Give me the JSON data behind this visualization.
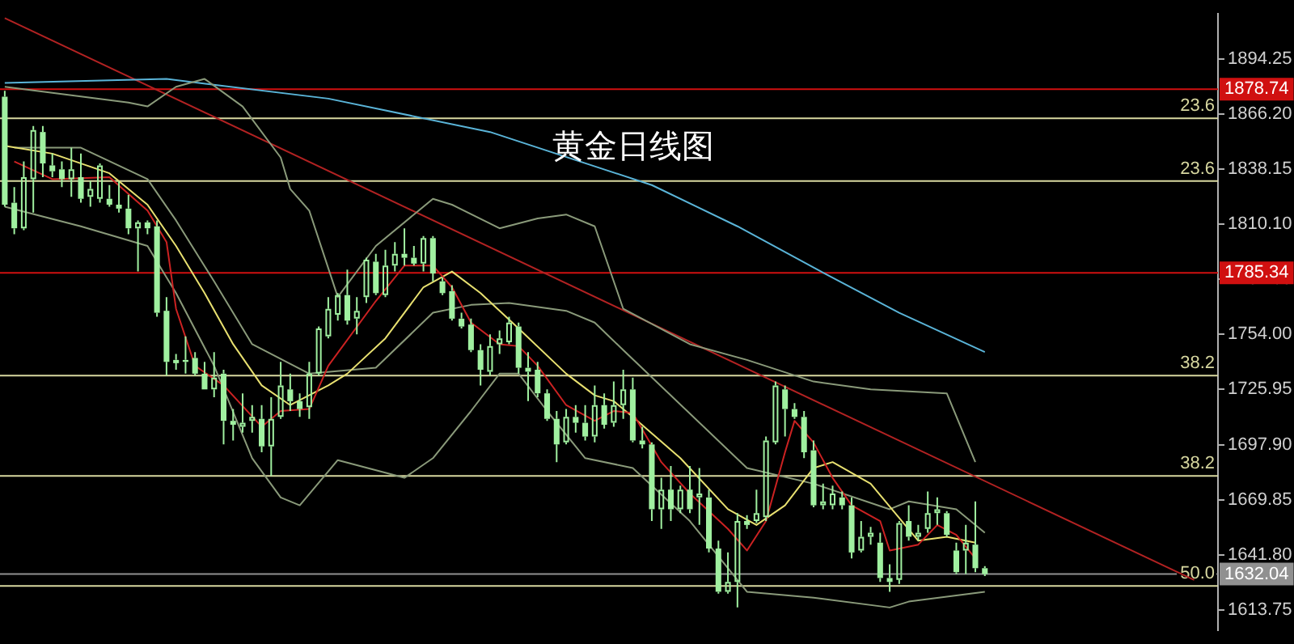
{
  "chart_data": {
    "type": "candlestick",
    "title": "黄金日线图",
    "color": "#a0f0a0",
    "tick_labels": "y",
    "categories": [
      null,
      null,
      null,
      null,
      null,
      null,
      null,
      null,
      null,
      null,
      null,
      null,
      null,
      null,
      null,
      null,
      null,
      null,
      null,
      null,
      null,
      null,
      null,
      null,
      null,
      null,
      null,
      null,
      null,
      null,
      null,
      null,
      null,
      null,
      null,
      null,
      null,
      null,
      null,
      null,
      null,
      null,
      null,
      null,
      null,
      null,
      null,
      null,
      null,
      null,
      null,
      null,
      null,
      null,
      null,
      null,
      null,
      null,
      null,
      null,
      null,
      null,
      null,
      null,
      null,
      null,
      null,
      null,
      null,
      null,
      null,
      null,
      null,
      null,
      null,
      null,
      null,
      null,
      null,
      null,
      null,
      null,
      null,
      null,
      null,
      null,
      null,
      null,
      null,
      null,
      null,
      null,
      null,
      null,
      null,
      null,
      null,
      null,
      null,
      null,
      null,
      null,
      null,
      null,
      null,
      null,
      null,
      null,
      null,
      null,
      null,
      null,
      null,
      null,
      null,
      null,
      null,
      null,
      null,
      null,
      null,
      null,
      null,
      null,
      null,
      null,
      null,
      null
    ],
    "ohlc": [
      [
        1875,
        1878,
        1819,
        1820
      ],
      [
        1821,
        1829,
        1805,
        1808
      ],
      [
        1808,
        1842,
        1807,
        1834
      ],
      [
        1833,
        1860,
        1816,
        1858
      ],
      [
        1857,
        1860,
        1834,
        1841
      ],
      [
        1840,
        1846,
        1834,
        1837
      ],
      [
        1838,
        1842,
        1829,
        1833
      ],
      [
        1833,
        1849,
        1824,
        1838
      ],
      [
        1834,
        1846,
        1821,
        1823
      ],
      [
        1824,
        1832,
        1819,
        1828
      ],
      [
        1823,
        1841,
        1821,
        1840
      ],
      [
        1823,
        1830,
        1819,
        1820
      ],
      [
        1820,
        1832,
        1816,
        1818
      ],
      [
        1818,
        1825,
        1805,
        1808
      ],
      [
        1808,
        1812,
        1786,
        1811
      ],
      [
        1811,
        1812,
        1805,
        1808
      ],
      [
        1809,
        1812,
        1763,
        1765
      ],
      [
        1766,
        1773,
        1733,
        1740
      ],
      [
        1740,
        1744,
        1736,
        1741
      ],
      [
        1741,
        1753,
        1734,
        1740
      ],
      [
        1742,
        1745,
        1733,
        1734
      ],
      [
        1734,
        1740,
        1726,
        1726
      ],
      [
        1726,
        1745,
        1722,
        1732
      ],
      [
        1734,
        1736,
        1698,
        1710
      ],
      [
        1710,
        1716,
        1700,
        1708
      ],
      [
        1707,
        1724,
        1704,
        1709
      ],
      [
        1710,
        1718,
        1704,
        1712
      ],
      [
        1711,
        1718,
        1694,
        1697
      ],
      [
        1697,
        1722,
        1682,
        1711
      ],
      [
        1712,
        1740,
        1711,
        1728
      ],
      [
        1726,
        1734,
        1715,
        1720
      ],
      [
        1720,
        1724,
        1712,
        1716
      ],
      [
        1717,
        1740,
        1711,
        1734
      ],
      [
        1734,
        1758,
        1733,
        1757
      ],
      [
        1753,
        1773,
        1752,
        1767
      ],
      [
        1764,
        1775,
        1761,
        1774
      ],
      [
        1774,
        1787,
        1759,
        1761
      ],
      [
        1762,
        1773,
        1754,
        1766
      ],
      [
        1773,
        1793,
        1770,
        1792
      ],
      [
        1791,
        1795,
        1774,
        1775
      ],
      [
        1774,
        1797,
        1773,
        1789
      ],
      [
        1789,
        1801,
        1786,
        1795
      ],
      [
        1795,
        1808,
        1789,
        1793
      ],
      [
        1793,
        1799,
        1789,
        1790
      ],
      [
        1790,
        1804,
        1786,
        1803
      ],
      [
        1803,
        1804,
        1781,
        1785
      ],
      [
        1781,
        1783,
        1774,
        1775
      ],
      [
        1776,
        1779,
        1761,
        1762
      ],
      [
        1762,
        1765,
        1757,
        1758
      ],
      [
        1759,
        1762,
        1745,
        1746
      ],
      [
        1746,
        1749,
        1728,
        1736
      ],
      [
        1735,
        1754,
        1733,
        1748
      ],
      [
        1749,
        1756,
        1744,
        1752
      ],
      [
        1750,
        1763,
        1749,
        1760
      ],
      [
        1758,
        1760,
        1734,
        1737
      ],
      [
        1737,
        1745,
        1720,
        1735
      ],
      [
        1736,
        1740,
        1722,
        1724
      ],
      [
        1724,
        1726,
        1710,
        1711
      ],
      [
        1711,
        1715,
        1689,
        1698
      ],
      [
        1699,
        1716,
        1698,
        1712
      ],
      [
        1712,
        1718,
        1704,
        1709
      ],
      [
        1709,
        1718,
        1700,
        1702
      ],
      [
        1702,
        1728,
        1699,
        1718
      ],
      [
        1718,
        1724,
        1706,
        1708
      ],
      [
        1709,
        1730,
        1707,
        1718
      ],
      [
        1718,
        1736,
        1711,
        1726
      ],
      [
        1726,
        1732,
        1699,
        1700
      ],
      [
        1700,
        1707,
        1696,
        1698
      ],
      [
        1698,
        1699,
        1659,
        1665
      ],
      [
        1665,
        1681,
        1655,
        1675
      ],
      [
        1675,
        1687,
        1659,
        1665
      ],
      [
        1665,
        1677,
        1663,
        1675
      ],
      [
        1675,
        1687,
        1663,
        1665
      ],
      [
        1671,
        1686,
        1657,
        1673
      ],
      [
        1671,
        1675,
        1643,
        1645
      ],
      [
        1645,
        1649,
        1622,
        1623
      ],
      [
        1623,
        1643,
        1622,
        1628
      ],
      [
        1628,
        1663,
        1615,
        1659
      ],
      [
        1659,
        1662,
        1655,
        1657
      ],
      [
        1659,
        1675,
        1658,
        1663
      ],
      [
        1661,
        1702,
        1659,
        1700
      ],
      [
        1699,
        1730,
        1698,
        1728
      ],
      [
        1726,
        1728,
        1702,
        1716
      ],
      [
        1716,
        1719,
        1711,
        1712
      ],
      [
        1712,
        1715,
        1691,
        1694
      ],
      [
        1695,
        1700,
        1666,
        1667
      ],
      [
        1667,
        1678,
        1665,
        1669
      ],
      [
        1667,
        1677,
        1665,
        1673
      ],
      [
        1671,
        1674,
        1665,
        1667
      ],
      [
        1667,
        1671,
        1640,
        1643
      ],
      [
        1644,
        1659,
        1643,
        1651
      ],
      [
        1651,
        1656,
        1647,
        1653
      ],
      [
        1648,
        1653,
        1628,
        1630
      ],
      [
        1630,
        1637,
        1623,
        1628
      ],
      [
        1629,
        1659,
        1627,
        1658
      ],
      [
        1659,
        1667,
        1649,
        1651
      ],
      [
        1651,
        1657,
        1649,
        1653
      ],
      [
        1655,
        1674,
        1653,
        1663
      ],
      [
        1663,
        1671,
        1657,
        1665
      ],
      [
        1663,
        1664,
        1651,
        1652
      ],
      [
        1644,
        1648,
        1632,
        1633
      ],
      [
        1644,
        1657,
        1632,
        1648
      ],
      [
        1647,
        1669,
        1633,
        1635
      ],
      [
        1635,
        1636,
        1631,
        1632
      ],
      null,
      null,
      null,
      null,
      null,
      null,
      null,
      null,
      null,
      null,
      null,
      null,
      null,
      null,
      null,
      null,
      null,
      null,
      null,
      null,
      null,
      null,
      null,
      null
    ],
    "series": [
      {
        "type": "line",
        "color": "#cc2222",
        "values": [
          null,
          1842,
          null,
          null,
          null,
          1833,
          null,
          null,
          null,
          null,
          null,
          1834,
          null,
          null,
          null,
          1817,
          null,
          1801,
          1767,
          null,
          1738,
          null,
          null,
          1728,
          null,
          null,
          null,
          1707,
          null,
          1715,
          null,
          null,
          1716,
          null,
          1738,
          null,
          null,
          null,
          null,
          1771,
          null,
          null,
          1789,
          null,
          null,
          1789,
          null,
          1778,
          null,
          1760,
          null,
          null,
          1749,
          null,
          1748,
          null,
          1738,
          null,
          null,
          1718,
          null,
          null,
          1710,
          null,
          1715,
          null,
          1714,
          null,
          null,
          1689,
          null,
          null,
          1673,
          null,
          null,
          null,
          1655,
          null,
          1644,
          null,
          1659,
          null,
          1694,
          1710,
          null,
          1699,
          null,
          1681,
          null,
          1667,
          null,
          null,
          1659,
          1644,
          null,
          null,
          1647,
          null,
          1657,
          null,
          1652,
          null,
          1640,
          null,
          null,
          null,
          null,
          null,
          null,
          null,
          null,
          null,
          null,
          null,
          null,
          null,
          null,
          null,
          null,
          null,
          null,
          null,
          null,
          null,
          null,
          null,
          null,
          null
        ]
      },
      {
        "type": "line",
        "color": "#e8e070",
        "values": [
          1850,
          null,
          null,
          null,
          null,
          1846,
          null,
          null,
          null,
          null,
          null,
          1836,
          null,
          null,
          null,
          1820,
          null,
          null,
          1799,
          null,
          null,
          1775,
          null,
          null,
          1749,
          null,
          null,
          1728,
          null,
          null,
          1718,
          null,
          null,
          null,
          1728,
          null,
          1734,
          null,
          null,
          null,
          1752,
          null,
          null,
          null,
          1778,
          null,
          null,
          1786,
          null,
          null,
          1775,
          null,
          null,
          null,
          1757,
          null,
          null,
          null,
          null,
          1734,
          null,
          null,
          1723,
          null,
          1720,
          null,
          1712,
          null,
          null,
          null,
          null,
          1691,
          null,
          null,
          null,
          null,
          1665,
          null,
          null,
          1657,
          null,
          null,
          1667,
          null,
          null,
          1686,
          null,
          1689,
          null,
          null,
          null,
          1678,
          null,
          null,
          null,
          null,
          1649,
          null,
          null,
          1651,
          null,
          null,
          1648,
          null,
          null,
          null,
          null,
          null,
          null,
          null,
          null,
          null,
          null,
          null,
          null,
          null,
          null,
          null,
          null,
          null,
          null,
          null,
          null,
          null,
          null,
          null,
          null,
          null
        ]
      },
      {
        "type": "line",
        "color": "#8a9a7a",
        "values": [
          1880,
          null,
          null,
          null,
          null,
          null,
          null,
          null,
          null,
          null,
          null,
          null,
          null,
          1872,
          null,
          1870,
          null,
          null,
          1880,
          null,
          null,
          1884,
          null,
          null,
          null,
          1870,
          null,
          null,
          null,
          1844,
          1828,
          null,
          1817,
          null,
          null,
          1773,
          null,
          null,
          null,
          1799,
          null,
          null,
          null,
          null,
          null,
          1823,
          null,
          1820,
          null,
          null,
          null,
          null,
          1808,
          null,
          null,
          null,
          1813,
          null,
          null,
          1815,
          null,
          null,
          1809,
          null,
          null,
          1767,
          null,
          null,
          null,
          null,
          null,
          null,
          1749,
          null,
          null,
          null,
          null,
          null,
          1741,
          null,
          null,
          null,
          null,
          null,
          null,
          1730,
          null,
          null,
          null,
          null,
          null,
          1726,
          null,
          null,
          null,
          null,
          null,
          null,
          null,
          1724,
          null,
          null,
          1689,
          null,
          null,
          null,
          null,
          null,
          null,
          null,
          null,
          null,
          null,
          null,
          null,
          null,
          null,
          null,
          null,
          null,
          null,
          null,
          null,
          null,
          null,
          null,
          null,
          null
        ]
      },
      {
        "type": "line",
        "color": "#8a9a7a",
        "values": [
          null,
          1849,
          null,
          null,
          null,
          null,
          null,
          null,
          1849,
          null,
          null,
          null,
          null,
          null,
          null,
          1833,
          null,
          null,
          1812,
          null,
          null,
          null,
          1781,
          null,
          null,
          null,
          1749,
          null,
          null,
          null,
          null,
          null,
          1734,
          null,
          null,
          null,
          null,
          null,
          null,
          1737,
          null,
          null,
          null,
          null,
          null,
          1765,
          null,
          null,
          null,
          1769,
          null,
          null,
          null,
          1770,
          null,
          null,
          null,
          null,
          null,
          1766,
          null,
          null,
          1760,
          null,
          null,
          1746,
          null,
          null,
          null,
          null,
          null,
          null,
          null,
          null,
          null,
          null,
          null,
          null,
          1686,
          null,
          null,
          null,
          null,
          null,
          null,
          1678,
          null,
          null,
          null,
          null,
          null,
          null,
          null,
          1665,
          null,
          1669,
          null,
          null,
          null,
          null,
          1665,
          null,
          null,
          1653,
          null,
          null,
          null,
          null,
          null,
          null,
          null,
          null,
          null,
          null,
          null,
          null,
          null,
          null,
          null,
          null,
          null,
          null,
          null,
          null,
          null,
          null,
          null,
          null
        ]
      },
      {
        "type": "line",
        "color": "#8a9a7a",
        "values": [
          1819,
          null,
          null,
          null,
          null,
          null,
          null,
          null,
          1809,
          null,
          null,
          null,
          null,
          null,
          null,
          1799,
          null,
          null,
          1775,
          null,
          null,
          null,
          1738,
          null,
          null,
          null,
          1691,
          null,
          null,
          1671,
          null,
          1667,
          null,
          null,
          null,
          1690,
          null,
          null,
          null,
          null,
          null,
          null,
          1681,
          null,
          null,
          1691,
          null,
          null,
          null,
          1715,
          null,
          null,
          1734,
          null,
          1734,
          null,
          null,
          1715,
          null,
          null,
          null,
          1691,
          null,
          null,
          null,
          null,
          1686,
          null,
          null,
          null,
          null,
          null,
          1659,
          null,
          null,
          null,
          null,
          null,
          1623,
          null,
          null,
          null,
          null,
          null,
          null,
          1620,
          null,
          null,
          null,
          null,
          null,
          null,
          null,
          1615,
          null,
          1618,
          null,
          null,
          null,
          null,
          null,
          null,
          null,
          1623,
          null,
          null,
          null,
          null,
          null,
          null,
          null,
          null,
          null,
          null,
          null,
          null,
          null,
          null,
          null,
          null,
          null,
          null,
          null,
          null,
          null,
          null,
          null,
          null
        ]
      },
      {
        "type": "line",
        "color": "#5ab4d8",
        "values": [
          1882,
          null,
          null,
          null,
          null,
          null,
          null,
          null,
          null,
          null,
          null,
          null,
          null,
          null,
          null,
          null,
          null,
          1884,
          null,
          null,
          null,
          null,
          null,
          null,
          null,
          null,
          null,
          null,
          null,
          null,
          null,
          null,
          null,
          null,
          1874,
          null,
          null,
          null,
          null,
          null,
          null,
          null,
          null,
          null,
          null,
          null,
          null,
          null,
          null,
          null,
          null,
          1857,
          null,
          null,
          null,
          null,
          null,
          null,
          null,
          null,
          null,
          null,
          null,
          null,
          null,
          null,
          null,
          null,
          1830,
          null,
          null,
          null,
          null,
          null,
          null,
          null,
          null,
          1809,
          null,
          null,
          null,
          null,
          null,
          null,
          null,
          1788,
          null,
          null,
          null,
          null,
          null,
          null,
          null,
          null,
          1765,
          null,
          null,
          null,
          null,
          null,
          null,
          null,
          null,
          1745,
          null,
          null,
          null,
          null,
          null,
          null,
          null,
          null,
          null,
          null,
          null,
          null,
          null,
          null,
          null,
          null,
          null,
          null,
          null,
          null,
          null,
          null,
          null,
          null
        ]
      },
      {
        "type": "line",
        "color": "#b22222",
        "values": [
          1915,
          null,
          null,
          null,
          null,
          null,
          null,
          null,
          null,
          null,
          null,
          null,
          null,
          null,
          null,
          null,
          null,
          null,
          null,
          null,
          null,
          null,
          null,
          null,
          null,
          null,
          null,
          null,
          null,
          null,
          null,
          null,
          null,
          null,
          null,
          null,
          null,
          null,
          null,
          null,
          null,
          null,
          null,
          null,
          null,
          null,
          null,
          null,
          null,
          null,
          null,
          null,
          null,
          null,
          null,
          null,
          null,
          null,
          null,
          null,
          null,
          null,
          null,
          null,
          null,
          null,
          null,
          null,
          null,
          null,
          null,
          null,
          null,
          null,
          null,
          null,
          null,
          null,
          null,
          null,
          null,
          null,
          null,
          null,
          null,
          null,
          null,
          null,
          null,
          null,
          null,
          null,
          null,
          null,
          null,
          null,
          null,
          null,
          null,
          null,
          null,
          null,
          null,
          null,
          null,
          null,
          null,
          null,
          null,
          null,
          null,
          null,
          null,
          null,
          null,
          null,
          null,
          null,
          null,
          null,
          null,
          null,
          null,
          null,
          null,
          1629,
          null,
          null
        ]
      }
    ],
    "ylim": [
      1603.5,
      1917.1
    ],
    "yticks": [
      1894.25,
      {
        "value": 1866.2,
        "label": "1866.20"
      },
      1838.15,
      {
        "value": 1810.1,
        "label": "1810.10"
      },
      1782.05,
      {
        "value": 1754,
        "label": "1754.00"
      },
      1725.95,
      {
        "value": 1697.9,
        "label": "1697.90"
      },
      1669.85,
      {
        "value": 1641.8,
        "label": "1641.80"
      },
      1613.75
    ],
    "ref_lines": [
      {
        "axis": "y",
        "value": 1878.74,
        "label": "1878.74",
        "color": "#d01010"
      },
      {
        "axis": "y",
        "value": 1864,
        "color": "#d8d8a0"
      },
      {
        "axis": "y",
        "value": 1832,
        "color": "#d8d8a0"
      },
      {
        "axis": "y",
        "value": 1785.34,
        "label": "1785.34",
        "color": "#d01010"
      },
      {
        "axis": "y",
        "value": 1733,
        "color": "#d8d8a0"
      },
      {
        "axis": "y",
        "value": 1682,
        "color": "#d8d8a0"
      },
      {
        "axis": "y",
        "value": 1632.04,
        "label": "1632.04",
        "color": "#909090"
      },
      {
        "axis": "y",
        "value": 1626,
        "color": "#d8d8a0"
      }
    ],
    "annotations": [
      {
        "text": "23.6",
        "y": 1864
      },
      {
        "text": "23.6",
        "y": 1832
      },
      {
        "text": "38.2",
        "y": 1733
      },
      {
        "text": "38.2",
        "y": 1682
      },
      {
        "text": "50.0",
        "y": 1626
      }
    ]
  }
}
